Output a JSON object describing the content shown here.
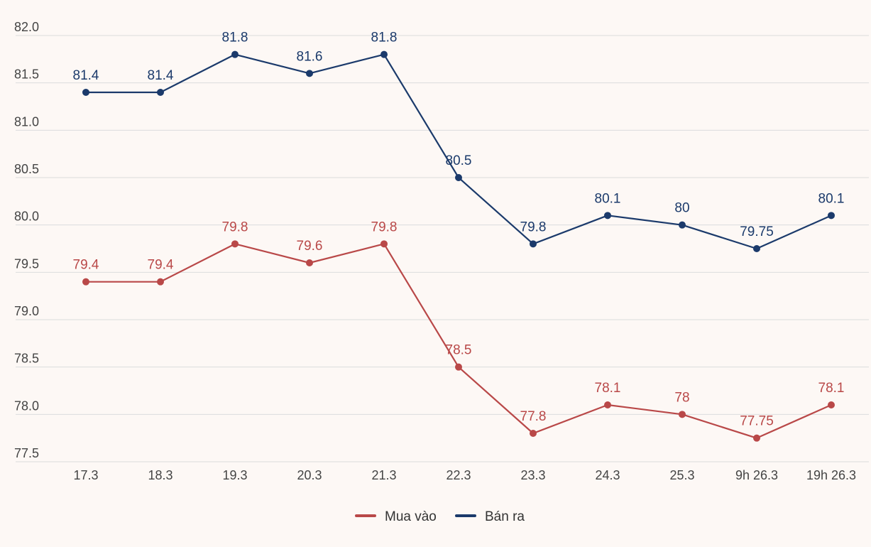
{
  "chart_data": {
    "type": "line",
    "title": "",
    "xlabel": "",
    "ylabel": "",
    "ylim": [
      77.5,
      82.0
    ],
    "yticks": [
      "77.5",
      "78.0",
      "78.5",
      "79.0",
      "79.5",
      "80.0",
      "80.5",
      "81.0",
      "81.5",
      "82.0"
    ],
    "categories": [
      "17.3",
      "18.3",
      "19.3",
      "20.3",
      "21.3",
      "22.3",
      "23.3",
      "24.3",
      "25.3",
      "9h 26.3",
      "19h 26.3"
    ],
    "series": [
      {
        "name": "Mua vào",
        "color": "#b94848",
        "values": [
          79.4,
          79.4,
          79.8,
          79.6,
          79.8,
          78.5,
          77.8,
          78.1,
          78.0,
          77.75,
          78.1
        ],
        "labels": [
          "79.4",
          "79.4",
          "79.8",
          "79.6",
          "79.8",
          "78.5",
          "77.8",
          "78.1",
          "78",
          "77.75",
          "78.1"
        ]
      },
      {
        "name": "Bán ra",
        "color": "#1b3a6b",
        "values": [
          81.4,
          81.4,
          81.8,
          81.6,
          81.8,
          80.5,
          79.8,
          80.1,
          80.0,
          79.75,
          80.1
        ],
        "labels": [
          "81.4",
          "81.4",
          "81.8",
          "81.6",
          "81.8",
          "80.5",
          "79.8",
          "80.1",
          "80",
          "79.75",
          "80.1"
        ]
      }
    ],
    "grid": true,
    "legend": "bottom-center"
  }
}
